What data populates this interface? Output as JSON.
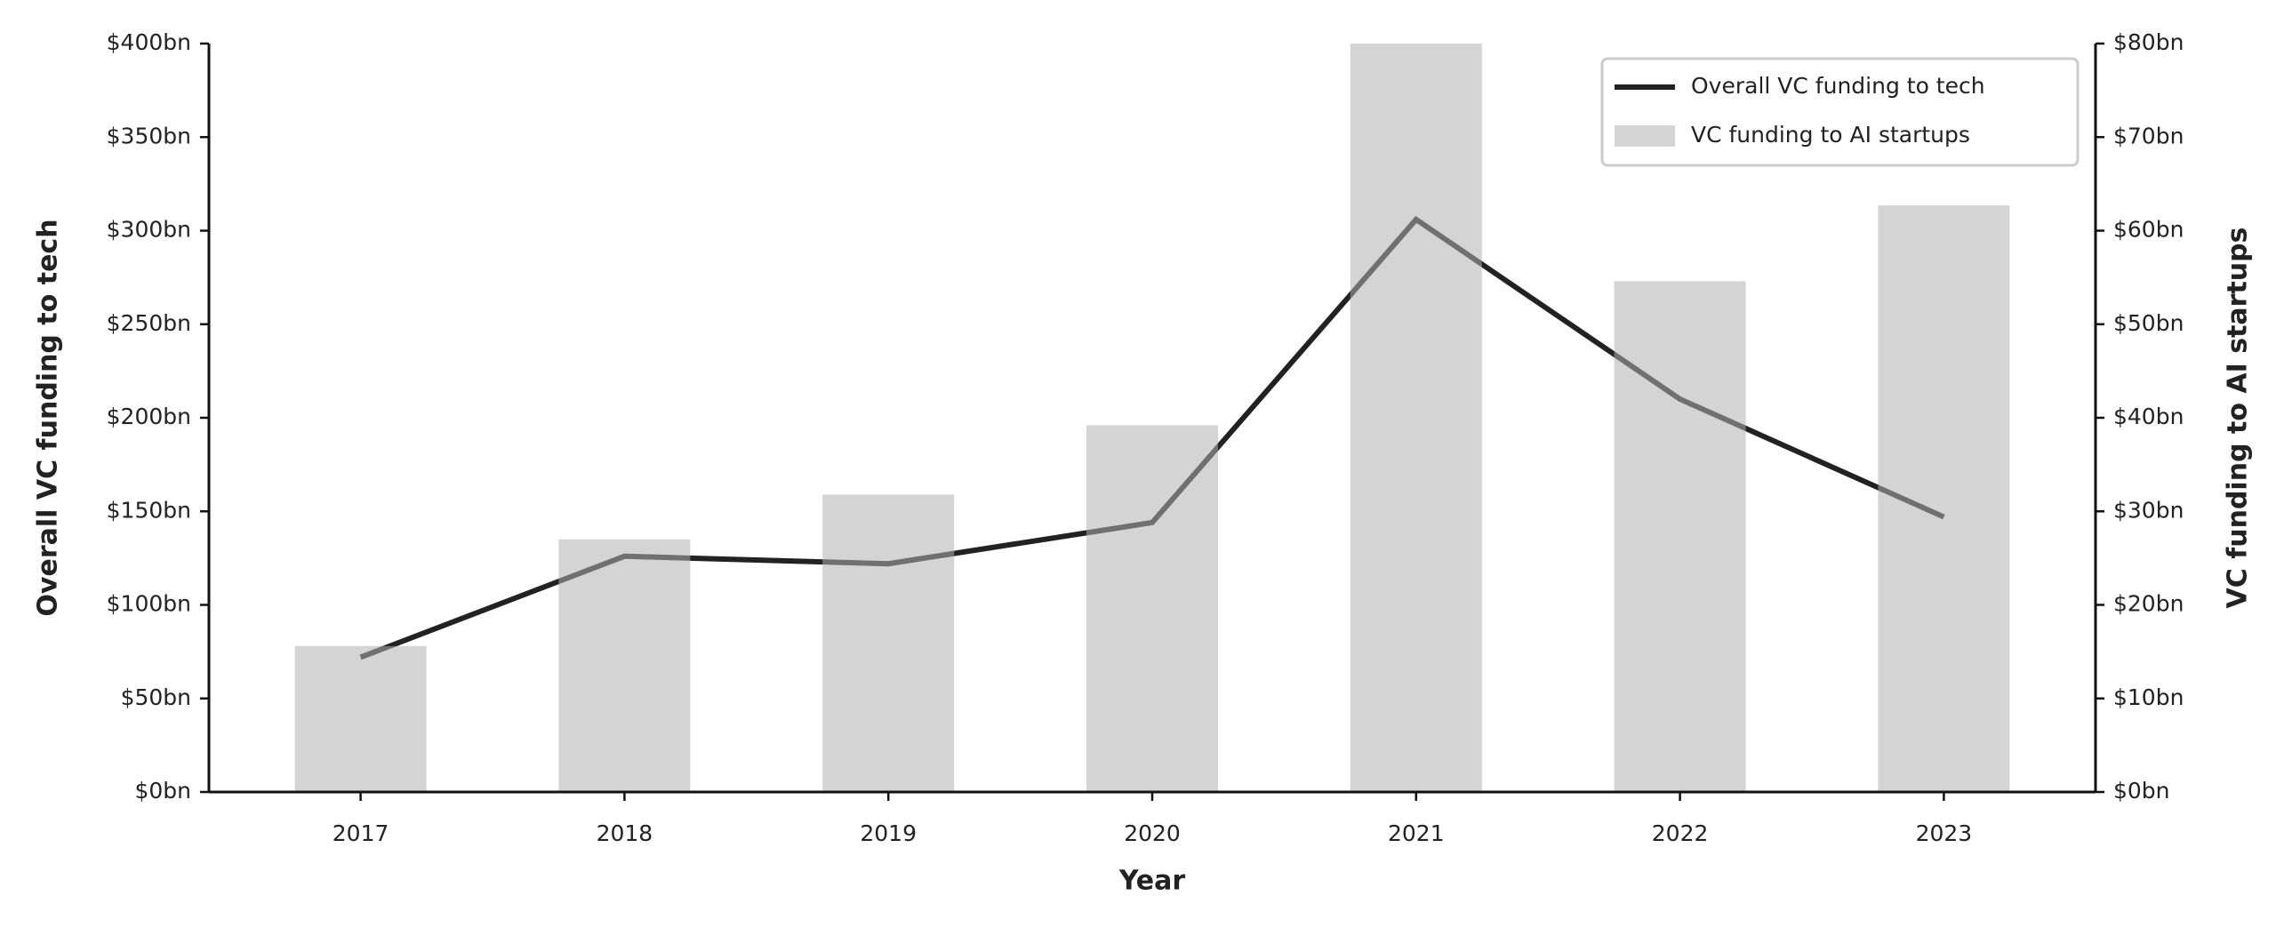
{
  "chart_data": {
    "type": "bar-line",
    "categories": [
      "2017",
      "2018",
      "2019",
      "2020",
      "2021",
      "2022",
      "2023"
    ],
    "x_label": "Year",
    "y_label": "Overall VC funding to tech",
    "y2_label": "VC funding to AI startups",
    "series": [
      {
        "name": "Overall VC funding to tech",
        "type": "line",
        "color": "#222222",
        "axis": "y",
        "values": [
          72,
          126,
          122,
          144,
          306,
          210,
          147
        ]
      },
      {
        "name": "VC funding to AI startups",
        "type": "bar",
        "color": "#b1b1b1",
        "axis": "y2",
        "values": [
          15.6,
          27,
          31.8,
          39.2,
          80,
          54.6,
          62.7
        ]
      }
    ],
    "ylim": [
      0,
      400
    ],
    "yticks": [
      {
        "value": 0,
        "label": "$0bn"
      },
      {
        "value": 50,
        "label": "$50bn"
      },
      {
        "value": 100,
        "label": "$100bn"
      },
      {
        "value": 150,
        "label": "$150bn"
      },
      {
        "value": 200,
        "label": "$200bn"
      },
      {
        "value": 250,
        "label": "$250bn"
      },
      {
        "value": 300,
        "label": "$300bn"
      },
      {
        "value": 350,
        "label": "$350bn"
      },
      {
        "value": 400,
        "label": "$400bn"
      }
    ],
    "y2lim": [
      0,
      80
    ],
    "y2ticks": [
      {
        "value": 0,
        "label": "$0bn"
      },
      {
        "value": 10,
        "label": "$10bn"
      },
      {
        "value": 20,
        "label": "$20bn"
      },
      {
        "value": 30,
        "label": "$30bn"
      },
      {
        "value": 40,
        "label": "$40bn"
      },
      {
        "value": 50,
        "label": "$50bn"
      },
      {
        "value": 60,
        "label": "$60bn"
      },
      {
        "value": 70,
        "label": "$70bn"
      },
      {
        "value": 80,
        "label": "$80bn"
      }
    ],
    "legend": "upper right",
    "grid": false
  }
}
